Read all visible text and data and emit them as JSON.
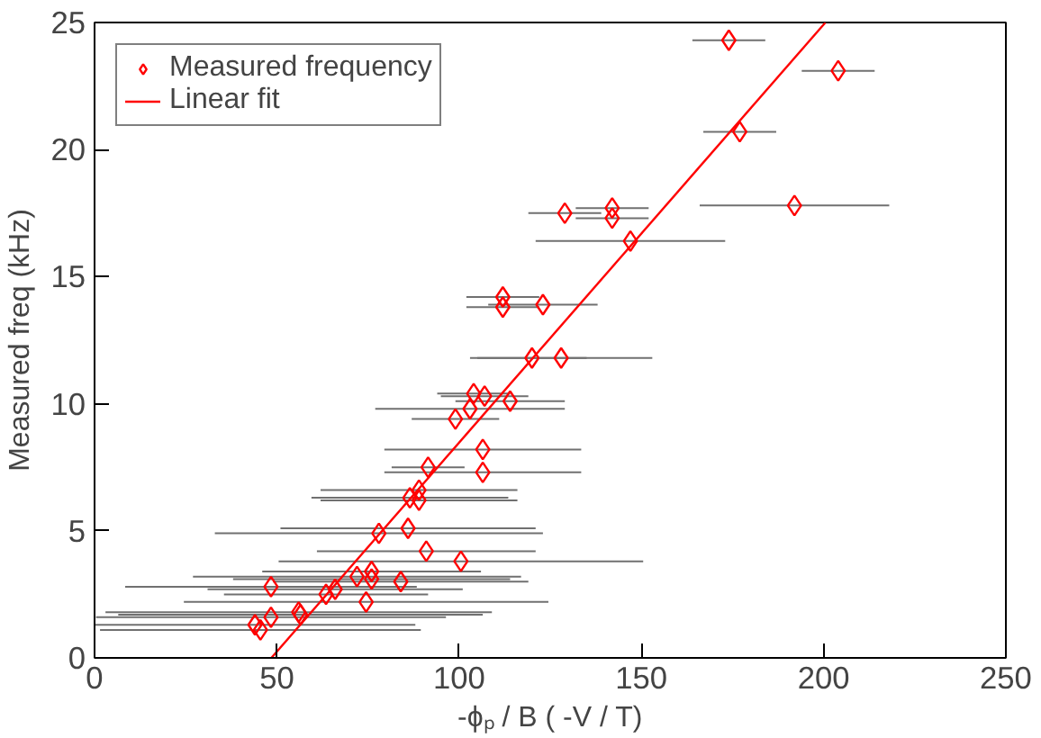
{
  "chart_data": {
    "type": "scatter",
    "xlabel": "-ϕₚ / B ( -V / T)",
    "ylabel": "Measured freq (kHz)",
    "xlim": [
      0,
      250
    ],
    "ylim": [
      0,
      25
    ],
    "xticks": [
      0,
      50,
      100,
      150,
      200,
      250
    ],
    "yticks": [
      0,
      5,
      10,
      15,
      20,
      25
    ],
    "grid": false,
    "legend": "top left",
    "series": [
      {
        "name": "Measured frequency",
        "marker": "diamond",
        "color": "#ff0000",
        "x": [
          174,
          204,
          177,
          192,
          129,
          142,
          142,
          147,
          112,
          112,
          123,
          120,
          128,
          104,
          107,
          114,
          103,
          99,
          106.5,
          91.5,
          106.5,
          89,
          86.5,
          89,
          78,
          86,
          91,
          100.5,
          48.4,
          72,
          76,
          76,
          84,
          63.5,
          66,
          74.5,
          48.4,
          56,
          56.5,
          44,
          45.5
        ],
        "values": [
          24.3,
          23.1,
          20.7,
          17.8,
          17.5,
          17.7,
          17.3,
          16.4,
          14.2,
          13.8,
          13.9,
          11.8,
          11.8,
          10.4,
          10.3,
          10.1,
          9.8,
          9.4,
          8.2,
          7.5,
          7.3,
          6.6,
          6.3,
          6.2,
          4.9,
          5.1,
          4.2,
          3.8,
          2.8,
          3.2,
          3.4,
          3.1,
          3.0,
          2.5,
          2.7,
          2.2,
          1.6,
          1.8,
          1.7,
          1.3,
          1.1
        ],
        "xerrors": [
          10,
          10,
          10,
          26,
          10,
          10,
          10,
          26,
          10,
          10,
          15,
          15,
          25,
          10,
          12,
          15,
          26,
          12,
          27,
          10,
          27,
          27,
          27,
          27,
          45,
          35,
          30,
          50,
          40,
          45,
          30,
          38,
          35,
          28,
          35,
          50,
          48,
          53,
          50,
          44,
          44
        ]
      },
      {
        "name": "Linear fit",
        "type": "line",
        "color": "#ff0000",
        "x": [
          48.5,
          200.5
        ],
        "values": [
          0,
          25
        ]
      }
    ]
  }
}
